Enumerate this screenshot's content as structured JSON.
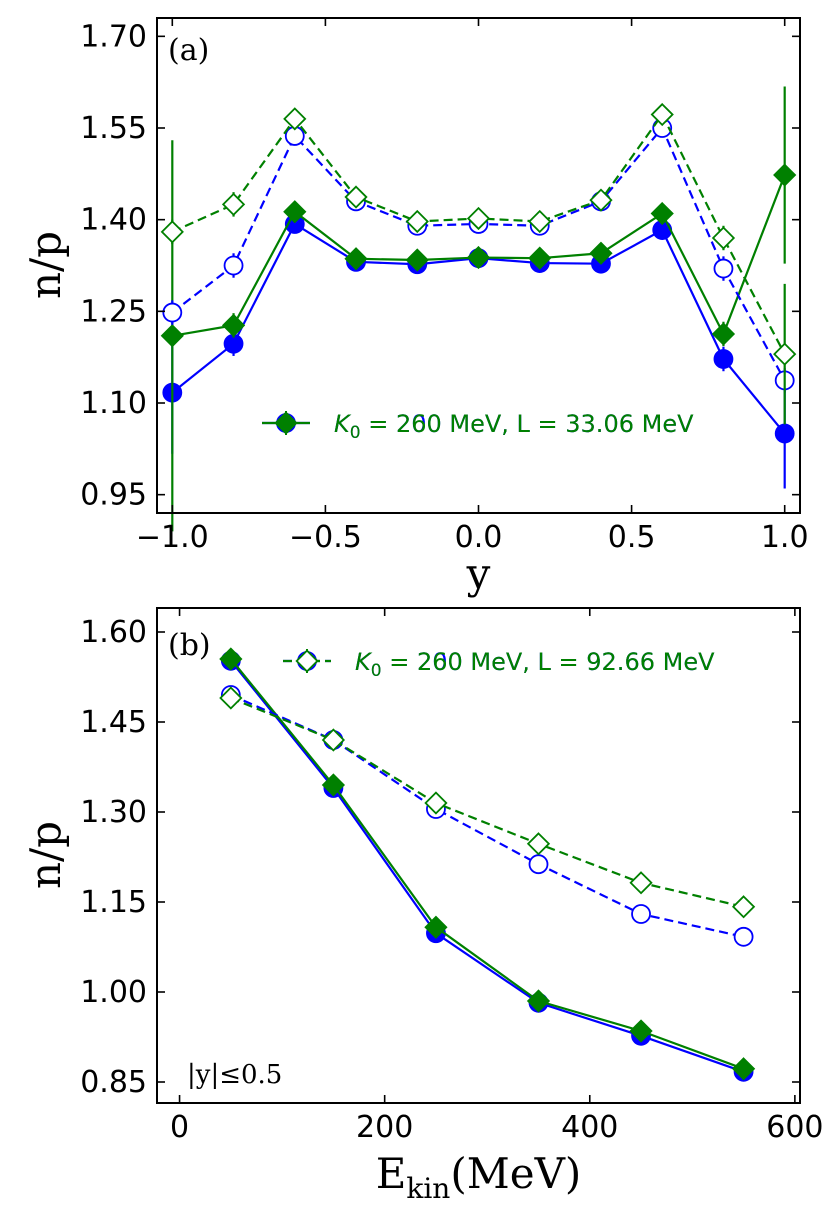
{
  "chart_data": [
    {
      "type": "line",
      "panel_label": "(a)",
      "xlabel": "y",
      "ylabel": "n/p",
      "xlim": [
        -1.05,
        1.05
      ],
      "ylim": [
        0.92,
        1.73
      ],
      "xticks": [
        -1.0,
        -0.5,
        0.0,
        0.5,
        1.0
      ],
      "xtick_labels": [
        "−1.0",
        "−0.5",
        "0.0",
        "0.5",
        "1.0"
      ],
      "yticks": [
        0.95,
        1.1,
        1.25,
        1.4,
        1.55,
        1.7
      ],
      "ytick_labels": [
        "0.95",
        "1.10",
        "1.25",
        "1.40",
        "1.55",
        "1.70"
      ],
      "x": [
        -1.0,
        -0.8,
        -0.6,
        -0.4,
        -0.2,
        0.0,
        0.2,
        0.4,
        0.6,
        0.8,
        1.0
      ],
      "legend_position": "lower-center",
      "series": [
        {
          "name_k": "K",
          "name_sub": "0",
          "name_rest": " = 200 MeV, L = 33.06 MeV",
          "color": "#0000ff",
          "marker": "circle",
          "filled": true,
          "dashed": false,
          "in_legend": true,
          "values": [
            1.117,
            1.197,
            1.393,
            1.331,
            1.327,
            1.337,
            1.329,
            1.328,
            1.383,
            1.172,
            1.05
          ],
          "errors": [
            0.1,
            0.02,
            0.01,
            0.005,
            0.005,
            0.005,
            0.005,
            0.005,
            0.01,
            0.02,
            0.09
          ]
        },
        {
          "name_k": "K",
          "name_sub": "0",
          "name_rest": " = 260 MeV, L = 33.06 MeV",
          "color": "#008000",
          "marker": "diamond",
          "filled": true,
          "dashed": false,
          "in_legend": true,
          "values": [
            1.21,
            1.227,
            1.413,
            1.336,
            1.334,
            1.338,
            1.337,
            1.345,
            1.41,
            1.213,
            1.473
          ],
          "errors": [
            0.32,
            0.02,
            0.01,
            0.005,
            0.005,
            0.005,
            0.005,
            0.005,
            0.01,
            0.02,
            0.145
          ]
        },
        {
          "name_k": "K",
          "name_sub": "0",
          "name_rest": " = 200 MeV, L = 92.66 MeV",
          "color": "#0000ff",
          "marker": "circle",
          "filled": false,
          "dashed": true,
          "in_legend": false,
          "values": [
            1.248,
            1.325,
            1.537,
            1.43,
            1.39,
            1.393,
            1.39,
            1.43,
            1.55,
            1.32,
            1.137
          ],
          "errors": [
            0.02,
            0.02,
            0.01,
            0.005,
            0.005,
            0.005,
            0.005,
            0.005,
            0.01,
            0.02,
            0.02
          ]
        },
        {
          "name_k": "K",
          "name_sub": "0",
          "name_rest": " = 260 MeV, L = 92.66 MeV",
          "color": "#008000",
          "marker": "diamond",
          "filled": false,
          "dashed": true,
          "in_legend": false,
          "values": [
            1.38,
            1.425,
            1.565,
            1.437,
            1.397,
            1.402,
            1.397,
            1.432,
            1.572,
            1.37,
            1.18
          ],
          "errors": [
            0.02,
            0.02,
            0.01,
            0.005,
            0.005,
            0.005,
            0.005,
            0.005,
            0.01,
            0.02,
            0.115
          ]
        }
      ]
    },
    {
      "type": "line",
      "panel_label": "(b)",
      "xlabel_main": "E",
      "xlabel_sub": "kin",
      "xlabel_rest": "(MeV)",
      "ylabel": "n/p",
      "annotation": "|y|≤0.5",
      "xlim": [
        -22,
        605
      ],
      "ylim": [
        0.815,
        1.64
      ],
      "xticks": [
        0,
        200,
        400,
        600
      ],
      "xtick_labels": [
        "0",
        "200",
        "400",
        "600"
      ],
      "yticks": [
        0.85,
        1.0,
        1.15,
        1.3,
        1.45,
        1.6
      ],
      "ytick_labels": [
        "0.85",
        "1.00",
        "1.15",
        "1.30",
        "1.45",
        "1.60"
      ],
      "x": [
        50,
        150,
        250,
        350,
        450,
        550
      ],
      "legend_position": "top-center",
      "series": [
        {
          "name_k": "K",
          "name_sub": "0",
          "name_rest": " = 200 MeV, L = 33.06 MeV",
          "color": "#0000ff",
          "marker": "circle",
          "filled": true,
          "dashed": false,
          "in_legend": false,
          "values": [
            1.552,
            1.34,
            1.098,
            0.982,
            0.927,
            0.867
          ],
          "errors": [
            0.005,
            0.005,
            0.005,
            0.005,
            0.005,
            0.005
          ]
        },
        {
          "name_k": "K",
          "name_sub": "0",
          "name_rest": " = 260 MeV, L = 33.06 MeV",
          "color": "#008000",
          "marker": "diamond",
          "filled": true,
          "dashed": false,
          "in_legend": false,
          "values": [
            1.555,
            1.345,
            1.108,
            0.985,
            0.935,
            0.872
          ],
          "errors": [
            0.005,
            0.005,
            0.005,
            0.005,
            0.005,
            0.005
          ]
        },
        {
          "name_k": "K",
          "name_sub": "0",
          "name_rest": " = 200 MeV, L = 92.66 MeV",
          "color": "#0000ff",
          "marker": "circle",
          "filled": false,
          "dashed": true,
          "in_legend": true,
          "values": [
            1.495,
            1.42,
            1.305,
            1.213,
            1.13,
            1.092
          ],
          "errors": [
            0.005,
            0.005,
            0.005,
            0.005,
            0.005,
            0.01
          ]
        },
        {
          "name_k": "K",
          "name_sub": "0",
          "name_rest": " = 260 MeV, L = 92.66 MeV",
          "color": "#008000",
          "marker": "diamond",
          "filled": false,
          "dashed": true,
          "in_legend": true,
          "values": [
            1.49,
            1.42,
            1.315,
            1.247,
            1.182,
            1.142
          ],
          "errors": [
            0.005,
            0.005,
            0.005,
            0.005,
            0.005,
            0.005
          ]
        }
      ]
    }
  ]
}
